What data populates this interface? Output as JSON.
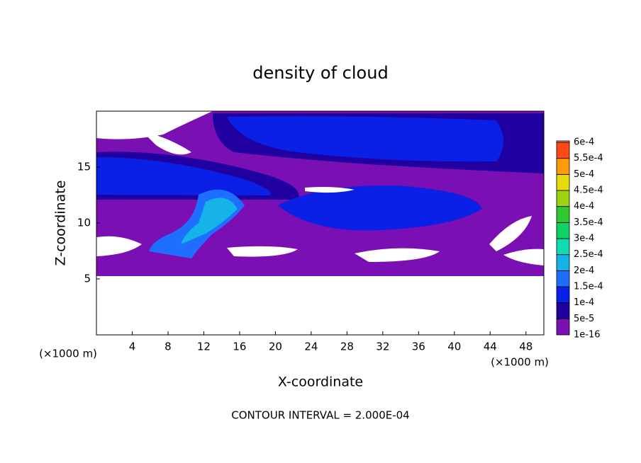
{
  "chart_data": {
    "type": "contour",
    "title": "density of cloud",
    "xlabel": "X-coordinate",
    "ylabel": "Z-coordinate",
    "x_unit": "(×1000 m)",
    "y_unit": "(×1000 m)",
    "footer": "CONTOUR INTERVAL = 2.000E-04",
    "xlim": [
      0,
      50
    ],
    "xticks": [
      4,
      8,
      12,
      16,
      20,
      24,
      28,
      32,
      36,
      40,
      44,
      48
    ],
    "ylim": [
      0,
      20
    ],
    "yticks": [
      5,
      10,
      15
    ],
    "levels": [
      {
        "value": 1e-16,
        "label": "1e-16"
      },
      {
        "value": 5e-05,
        "label": "5e-5"
      },
      {
        "value": 0.0001,
        "label": "1e-4"
      },
      {
        "value": 0.00015,
        "label": "1.5e-4"
      },
      {
        "value": 0.0002,
        "label": "2e-4"
      },
      {
        "value": 0.00025,
        "label": "2.5e-4"
      },
      {
        "value": 0.0003,
        "label": "3e-4"
      },
      {
        "value": 0.00035,
        "label": "3.5e-4"
      },
      {
        "value": 0.0004,
        "label": "4e-4"
      },
      {
        "value": 0.00045,
        "label": "4.5e-4"
      },
      {
        "value": 0.0005,
        "label": "5e-4"
      },
      {
        "value": 0.00055,
        "label": "5.5e-4"
      },
      {
        "value": 0.0006,
        "label": "6e-4"
      }
    ],
    "colors": [
      "#7a10b4",
      "#2000a0",
      "#0a20e6",
      "#1e6eff",
      "#16b4e6",
      "#10dcb4",
      "#10d264",
      "#32c832",
      "#a0d214",
      "#e6dc0a",
      "#ff9a0a",
      "#ff4a14",
      "#ff8c8c"
    ]
  }
}
